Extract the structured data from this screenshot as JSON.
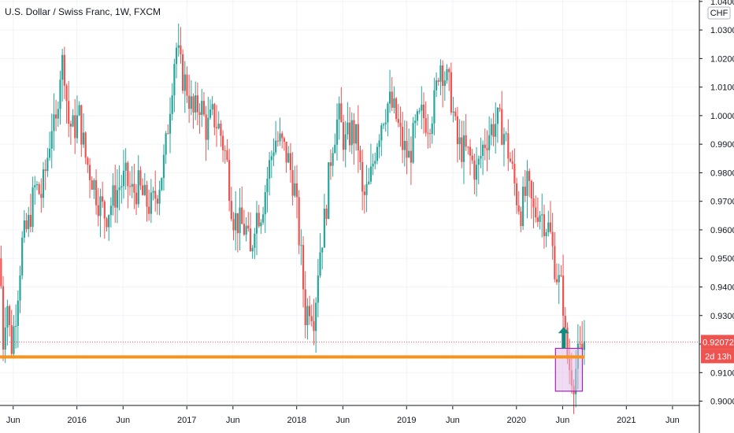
{
  "chart_data": {
    "type": "candlestick",
    "title": "U.S. Dollar / Swiss Franc, 1W, FXCM",
    "currency_label": "CHF",
    "ylim": [
      0.8985,
      1.0405
    ],
    "y_ticks": [
      "1.04000",
      "1.03000",
      "1.02000",
      "1.01000",
      "1.00000",
      "0.99000",
      "0.98000",
      "0.97000",
      "0.96000",
      "0.95000",
      "0.94000",
      "0.93000",
      "0.92000",
      "0.91000",
      "0.90000"
    ],
    "y_tick_values": [
      1.04,
      1.03,
      1.02,
      1.01,
      1.0,
      0.99,
      0.98,
      0.97,
      0.96,
      0.95,
      0.94,
      0.93,
      0.92,
      0.91,
      0.9
    ],
    "x_ticks": [
      {
        "label": "Jun",
        "t": 2015.42
      },
      {
        "label": "2016",
        "t": 2016.0
      },
      {
        "label": "Jun",
        "t": 2016.42
      },
      {
        "label": "2017",
        "t": 2017.0
      },
      {
        "label": "Jun",
        "t": 2017.42
      },
      {
        "label": "2018",
        "t": 2018.0
      },
      {
        "label": "Jun",
        "t": 2018.42
      },
      {
        "label": "2019",
        "t": 2019.0
      },
      {
        "label": "Jun",
        "t": 2019.42
      },
      {
        "label": "2020",
        "t": 2020.0
      },
      {
        "label": "Jun",
        "t": 2020.42
      },
      {
        "label": "2021",
        "t": 2021.0
      },
      {
        "label": "Jun",
        "t": 2021.42
      }
    ],
    "xlim": [
      2015.3,
      2021.65
    ],
    "price_line": {
      "value": 0.92072,
      "label": "0.92072",
      "countdown": "2d 13h"
    },
    "support_level": 0.9155,
    "support_range": [
      2015.3,
      2020.62
    ],
    "highlight_box": {
      "x": [
        2020.355,
        2020.6
      ],
      "y": [
        0.9035,
        0.9185
      ]
    },
    "up_arrow": {
      "t": 2020.43,
      "from": 0.9185,
      "to": 0.926
    },
    "colors": {
      "up": "#26a69a",
      "down": "#ef5350",
      "support": "#f7931a",
      "box_fill": "#e1bee7",
      "box_border": "#9c27b0",
      "arrow": "#138a7e",
      "price": "#ef5350"
    },
    "path_points": [
      [
        2015.3,
        0.95
      ],
      [
        2015.33,
        0.92
      ],
      [
        2015.36,
        0.938
      ],
      [
        2015.4,
        0.918
      ],
      [
        2015.44,
        0.93
      ],
      [
        2015.5,
        0.955
      ],
      [
        2015.56,
        0.962
      ],
      [
        2015.62,
        0.975
      ],
      [
        2015.68,
        0.972
      ],
      [
        2015.73,
        0.985
      ],
      [
        2015.78,
        1.0
      ],
      [
        2015.8,
        0.99
      ],
      [
        2015.84,
        1.015
      ],
      [
        2015.88,
        1.02
      ],
      [
        2015.92,
        0.998
      ],
      [
        2015.97,
        0.995
      ],
      [
        2016.02,
        1.0
      ],
      [
        2016.08,
        0.985
      ],
      [
        2016.14,
        0.978
      ],
      [
        2016.2,
        0.97
      ],
      [
        2016.26,
        0.965
      ],
      [
        2016.32,
        0.97
      ],
      [
        2016.38,
        0.975
      ],
      [
        2016.44,
        0.978
      ],
      [
        2016.5,
        0.973
      ],
      [
        2016.56,
        0.975
      ],
      [
        2016.62,
        0.97
      ],
      [
        2016.68,
        0.968
      ],
      [
        2016.74,
        0.975
      ],
      [
        2016.8,
        0.985
      ],
      [
        2016.86,
        1.01
      ],
      [
        2016.9,
        1.025
      ],
      [
        2016.95,
        1.015
      ],
      [
        2017.0,
        1.01
      ],
      [
        2017.06,
        1.0
      ],
      [
        2017.12,
        1.005
      ],
      [
        2017.18,
        0.995
      ],
      [
        2017.24,
        1.0
      ],
      [
        2017.3,
        0.995
      ],
      [
        2017.36,
        0.985
      ],
      [
        2017.42,
        0.965
      ],
      [
        2017.48,
        0.962
      ],
      [
        2017.54,
        0.96
      ],
      [
        2017.58,
        0.95
      ],
      [
        2017.62,
        0.965
      ],
      [
        2017.68,
        0.967
      ],
      [
        2017.74,
        0.98
      ],
      [
        2017.8,
        0.992
      ],
      [
        2017.86,
        0.99
      ],
      [
        2017.92,
        0.985
      ],
      [
        2017.98,
        0.975
      ],
      [
        2018.04,
        0.95
      ],
      [
        2018.08,
        0.93
      ],
      [
        2018.12,
        0.935
      ],
      [
        2018.16,
        0.93
      ],
      [
        2018.2,
        0.95
      ],
      [
        2018.26,
        0.965
      ],
      [
        2018.32,
        0.99
      ],
      [
        2018.38,
        1.0
      ],
      [
        2018.44,
        0.99
      ],
      [
        2018.5,
        0.995
      ],
      [
        2018.56,
        0.99
      ],
      [
        2018.6,
        0.97
      ],
      [
        2018.66,
        0.975
      ],
      [
        2018.72,
        0.99
      ],
      [
        2018.78,
        1.0
      ],
      [
        2018.84,
        1.005
      ],
      [
        2018.9,
        1.0
      ],
      [
        2018.96,
        0.99
      ],
      [
        2019.02,
        0.985
      ],
      [
        2019.08,
        0.995
      ],
      [
        2019.14,
        1.0
      ],
      [
        2019.2,
        0.998
      ],
      [
        2019.26,
        1.005
      ],
      [
        2019.3,
        1.02
      ],
      [
        2019.34,
        1.015
      ],
      [
        2019.4,
        1.008
      ],
      [
        2019.46,
        0.99
      ],
      [
        2019.52,
        0.988
      ],
      [
        2019.58,
        0.985
      ],
      [
        2019.64,
        0.98
      ],
      [
        2019.7,
        0.99
      ],
      [
        2019.76,
        0.995
      ],
      [
        2019.82,
        0.998
      ],
      [
        2019.88,
        0.995
      ],
      [
        2019.94,
        0.985
      ],
      [
        2020.0,
        0.972
      ],
      [
        2020.04,
        0.967
      ],
      [
        2020.1,
        0.975
      ],
      [
        2020.16,
        0.965
      ],
      [
        2020.2,
        0.968
      ],
      [
        2020.26,
        0.963
      ],
      [
        2020.3,
        0.96
      ],
      [
        2020.34,
        0.95
      ],
      [
        2020.38,
        0.942
      ],
      [
        2020.42,
        0.938
      ],
      [
        2020.45,
        0.918
      ],
      [
        2020.48,
        0.912
      ],
      [
        2020.52,
        0.908
      ],
      [
        2020.56,
        0.915
      ],
      [
        2020.6,
        0.918
      ],
      [
        2020.63,
        0.924
      ]
    ]
  }
}
